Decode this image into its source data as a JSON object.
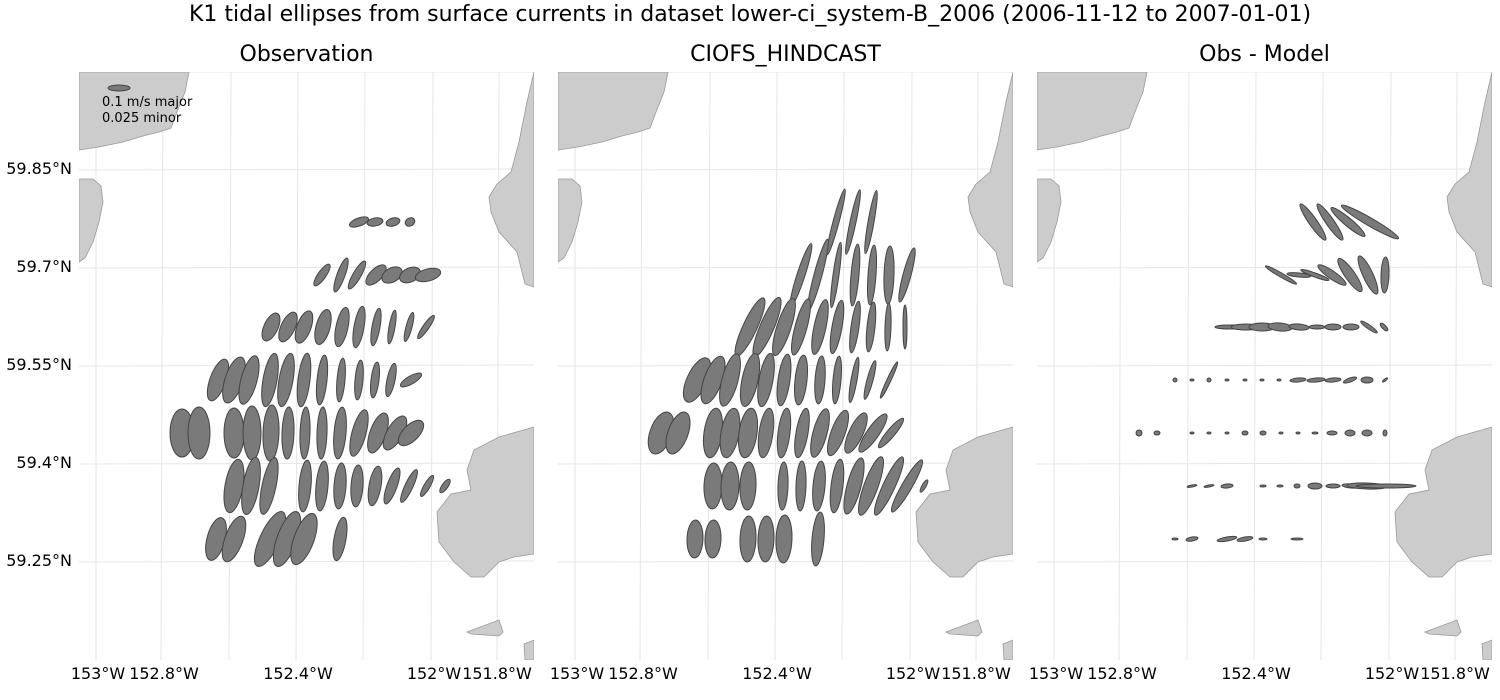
{
  "title": "K1 tidal ellipses from surface currents in dataset lower-ci_system-B_2006 (2006-11-12 to 2007-01-01)",
  "panels": [
    {
      "title": "Observation"
    },
    {
      "title": "CIOFS_HINDCAST"
    },
    {
      "title": "Obs - Model"
    }
  ],
  "lat_labels": [
    "59.85°N",
    "59.7°N",
    "59.55°N",
    "59.4°N",
    "59.25°N"
  ],
  "lon_labels": [
    "153°W",
    "152.8°W",
    "152.4°W",
    "152°W",
    "151.8°W"
  ],
  "legend": {
    "major": "0.1 m/s major",
    "minor": "0.025 minor"
  },
  "colors": {
    "land": "#cccccc",
    "ellipse_fill": "#7a7a7a",
    "ellipse_stroke": "#444444",
    "grid": "#e6e6e6"
  }
}
